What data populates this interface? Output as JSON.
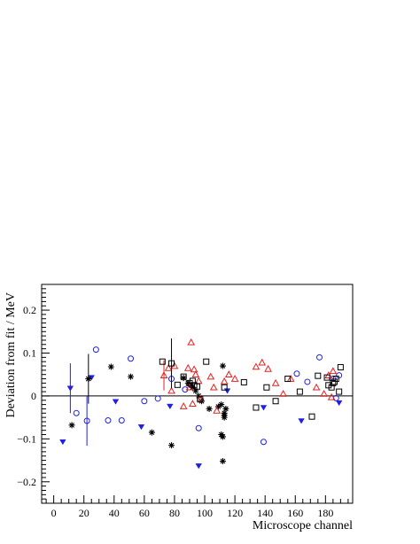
{
  "chart_data": {
    "type": "scatter",
    "xlabel": "Microscope channel",
    "ylabel": "Deviation from fit / MeV",
    "xlim": [
      -8,
      198
    ],
    "ylim": [
      -0.25,
      0.26
    ],
    "xticks": [
      0,
      20,
      40,
      60,
      80,
      100,
      120,
      140,
      160,
      180
    ],
    "xtick_labels": [
      "0",
      "20",
      "40",
      "60",
      "80",
      "100",
      "120",
      "140",
      "160",
      "180"
    ],
    "yticks": [
      -0.2,
      -0.1,
      0,
      0.1,
      0.2
    ],
    "ytick_labels": [
      "−0.2",
      "−0.1",
      "0",
      "0.1",
      "0.2"
    ],
    "reference_line_y": 0,
    "grid": false,
    "series": [
      {
        "marker": "open-circle",
        "color": "#1f1fe6",
        "points": [
          {
            "x": 15,
            "y": -0.04
          },
          {
            "x": 22,
            "y": -0.058,
            "err": 0.058
          },
          {
            "x": 28,
            "y": 0.108
          },
          {
            "x": 36,
            "y": -0.057
          },
          {
            "x": 45,
            "y": -0.057
          },
          {
            "x": 51,
            "y": 0.087
          },
          {
            "x": 60,
            "y": -0.012
          },
          {
            "x": 69,
            "y": -0.006
          },
          {
            "x": 78,
            "y": 0.04
          },
          {
            "x": 87,
            "y": 0.015
          },
          {
            "x": 96,
            "y": -0.075
          },
          {
            "x": 139,
            "y": -0.107
          },
          {
            "x": 161,
            "y": 0.052
          },
          {
            "x": 168,
            "y": 0.033
          },
          {
            "x": 176,
            "y": 0.09
          },
          {
            "x": 185,
            "y": 0.04
          },
          {
            "x": 187,
            "y": -0.005
          },
          {
            "x": 189,
            "y": 0.048
          }
        ]
      },
      {
        "marker": "filled-triangle-down",
        "color": "#1f1fe6",
        "points": [
          {
            "x": 6,
            "y": -0.107
          },
          {
            "x": 11,
            "y": 0.018,
            "err": 0.058
          },
          {
            "x": 25,
            "y": 0.043
          },
          {
            "x": 41,
            "y": -0.013
          },
          {
            "x": 58,
            "y": -0.072
          },
          {
            "x": 77,
            "y": -0.024
          },
          {
            "x": 96,
            "y": -0.163
          },
          {
            "x": 115,
            "y": 0.012
          },
          {
            "x": 139,
            "y": -0.027
          },
          {
            "x": 164,
            "y": -0.058
          },
          {
            "x": 189,
            "y": -0.016
          }
        ]
      },
      {
        "marker": "asterisk",
        "color": "#000000",
        "points": [
          {
            "x": 12,
            "y": -0.068
          },
          {
            "x": 23,
            "y": 0.04,
            "err": 0.058
          },
          {
            "x": 38,
            "y": 0.068
          },
          {
            "x": 51,
            "y": 0.045
          },
          {
            "x": 65,
            "y": -0.085
          },
          {
            "x": 78,
            "y": -0.115
          },
          {
            "x": 86,
            "y": 0.042
          },
          {
            "x": 89,
            "y": 0.03
          },
          {
            "x": 91,
            "y": 0.025
          },
          {
            "x": 92,
            "y": 0.02
          },
          {
            "x": 94,
            "y": 0.012
          },
          {
            "x": 96,
            "y": 0.0
          },
          {
            "x": 98,
            "y": -0.012
          },
          {
            "x": 103,
            "y": -0.03
          },
          {
            "x": 109,
            "y": -0.025
          },
          {
            "x": 111,
            "y": -0.02
          },
          {
            "x": 111,
            "y": -0.09
          },
          {
            "x": 112,
            "y": -0.095
          },
          {
            "x": 112,
            "y": 0.07
          },
          {
            "x": 113,
            "y": -0.04
          },
          {
            "x": 113,
            "y": -0.045
          },
          {
            "x": 113,
            "y": -0.05
          },
          {
            "x": 114,
            "y": -0.03
          },
          {
            "x": 112,
            "y": -0.152
          }
        ]
      },
      {
        "marker": "open-triangle-up",
        "color": "#e62020",
        "points": [
          {
            "x": 73,
            "y": 0.048,
            "err": 0.035
          },
          {
            "x": 76,
            "y": 0.065
          },
          {
            "x": 78,
            "y": 0.012
          },
          {
            "x": 80,
            "y": 0.07
          },
          {
            "x": 86,
            "y": -0.024
          },
          {
            "x": 89,
            "y": 0.065
          },
          {
            "x": 90,
            "y": 0.02
          },
          {
            "x": 91,
            "y": 0.125
          },
          {
            "x": 92,
            "y": -0.018
          },
          {
            "x": 93,
            "y": 0.062
          },
          {
            "x": 94,
            "y": 0.05
          },
          {
            "x": 96,
            "y": 0.035
          },
          {
            "x": 97,
            "y": -0.005
          },
          {
            "x": 104,
            "y": 0.045
          },
          {
            "x": 106,
            "y": 0.02
          },
          {
            "x": 108,
            "y": -0.034
          },
          {
            "x": 113,
            "y": 0.034
          },
          {
            "x": 116,
            "y": 0.05
          },
          {
            "x": 120,
            "y": 0.04
          },
          {
            "x": 134,
            "y": 0.068
          },
          {
            "x": 138,
            "y": 0.078
          },
          {
            "x": 142,
            "y": 0.063
          },
          {
            "x": 147,
            "y": 0.03
          },
          {
            "x": 152,
            "y": 0.005
          },
          {
            "x": 157,
            "y": 0.04
          },
          {
            "x": 174,
            "y": 0.02
          },
          {
            "x": 179,
            "y": 0.005
          },
          {
            "x": 182,
            "y": 0.048
          },
          {
            "x": 184,
            "y": -0.003
          },
          {
            "x": 185,
            "y": 0.058
          }
        ]
      },
      {
        "marker": "open-square",
        "color": "#000000",
        "points": [
          {
            "x": 72,
            "y": 0.08
          },
          {
            "x": 78,
            "y": 0.076,
            "err": 0.058
          },
          {
            "x": 82,
            "y": 0.026
          },
          {
            "x": 86,
            "y": 0.045
          },
          {
            "x": 90,
            "y": 0.03
          },
          {
            "x": 92,
            "y": 0.035
          },
          {
            "x": 93,
            "y": 0.025
          },
          {
            "x": 95,
            "y": 0.022
          },
          {
            "x": 97,
            "y": -0.008
          },
          {
            "x": 101,
            "y": 0.08
          },
          {
            "x": 113,
            "y": 0.02
          },
          {
            "x": 126,
            "y": 0.032
          },
          {
            "x": 134,
            "y": -0.027
          },
          {
            "x": 141,
            "y": 0.02
          },
          {
            "x": 147,
            "y": -0.012
          },
          {
            "x": 155,
            "y": 0.04
          },
          {
            "x": 163,
            "y": 0.01
          },
          {
            "x": 171,
            "y": -0.048
          },
          {
            "x": 175,
            "y": 0.047
          },
          {
            "x": 181,
            "y": 0.043
          },
          {
            "x": 182,
            "y": 0.025
          },
          {
            "x": 184,
            "y": 0.02
          },
          {
            "x": 185,
            "y": 0.03
          },
          {
            "x": 186,
            "y": 0.033
          },
          {
            "x": 187,
            "y": 0.04
          },
          {
            "x": 189,
            "y": 0.01
          },
          {
            "x": 190,
            "y": 0.067
          }
        ]
      }
    ]
  }
}
